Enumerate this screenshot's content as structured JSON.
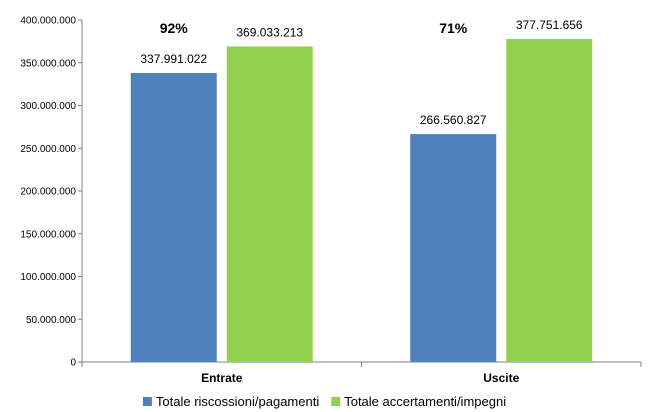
{
  "chart_data": {
    "type": "bar",
    "categories": [
      "Entrate",
      "Uscite"
    ],
    "series": [
      {
        "name": "Totale riscossioni/pagamenti",
        "values": [
          337991022,
          266560827
        ],
        "labels": [
          "337.991.022",
          "266.560.827"
        ],
        "color": "#4f81bd"
      },
      {
        "name": "Totale accertamenti/impegni",
        "values": [
          369033213,
          377751656
        ],
        "labels": [
          "369.033.213",
          "377.751.656"
        ],
        "color": "#92d050"
      }
    ],
    "annotations": [
      "92%",
      "71%"
    ],
    "ylim": [
      0,
      400000000
    ],
    "yticks": [
      0,
      50000000,
      100000000,
      150000000,
      200000000,
      250000000,
      300000000,
      350000000,
      400000000
    ],
    "ytick_labels": [
      "0",
      "50.000.000",
      "100.000.000",
      "150.000.000",
      "200.000.000",
      "250.000.000",
      "300.000.000",
      "350.000.000",
      "400.000.000"
    ],
    "grid": false,
    "legend_position": "bottom",
    "title": "",
    "xlabel": "",
    "ylabel": ""
  }
}
